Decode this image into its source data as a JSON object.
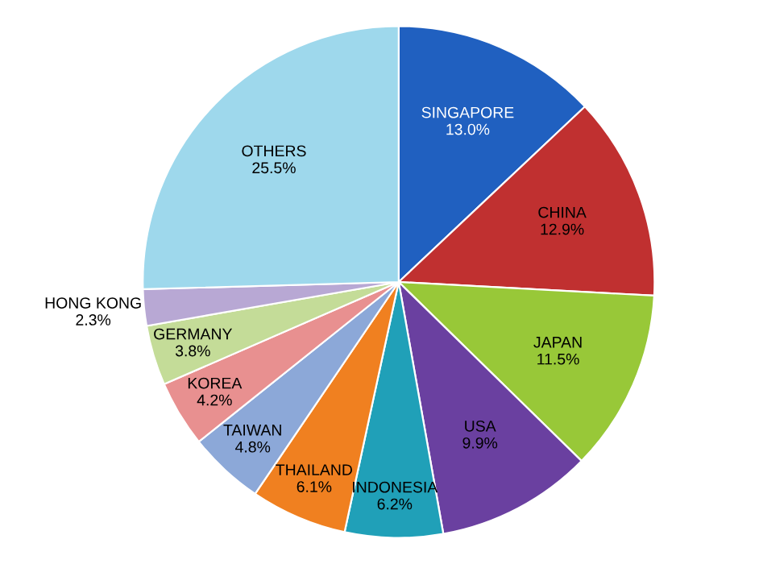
{
  "chart_data": {
    "type": "pie",
    "categories": [
      "SINGAPORE",
      "CHINA",
      "JAPAN",
      "USA",
      "INDONESIA",
      "THAILAND",
      "TAIWAN",
      "KOREA",
      "GERMANY",
      "HONG KONG",
      "OTHERS"
    ],
    "values": [
      13.0,
      12.9,
      11.5,
      9.9,
      6.2,
      6.1,
      4.8,
      4.2,
      3.8,
      2.3,
      25.5
    ],
    "value_labels": [
      "13.0%",
      "12.9%",
      "11.5%",
      "9.9%",
      "6.2%",
      "6.1%",
      "4.8%",
      "4.2%",
      "3.8%",
      "2.3%",
      "25.5%"
    ],
    "colors": [
      "#2060c0",
      "#c03030",
      "#98c838",
      "#6a40a0",
      "#20a0b8",
      "#f08020",
      "#8ca8d8",
      "#e89090",
      "#c4dc98",
      "#b8a8d4",
      "#9ed8ec"
    ]
  }
}
